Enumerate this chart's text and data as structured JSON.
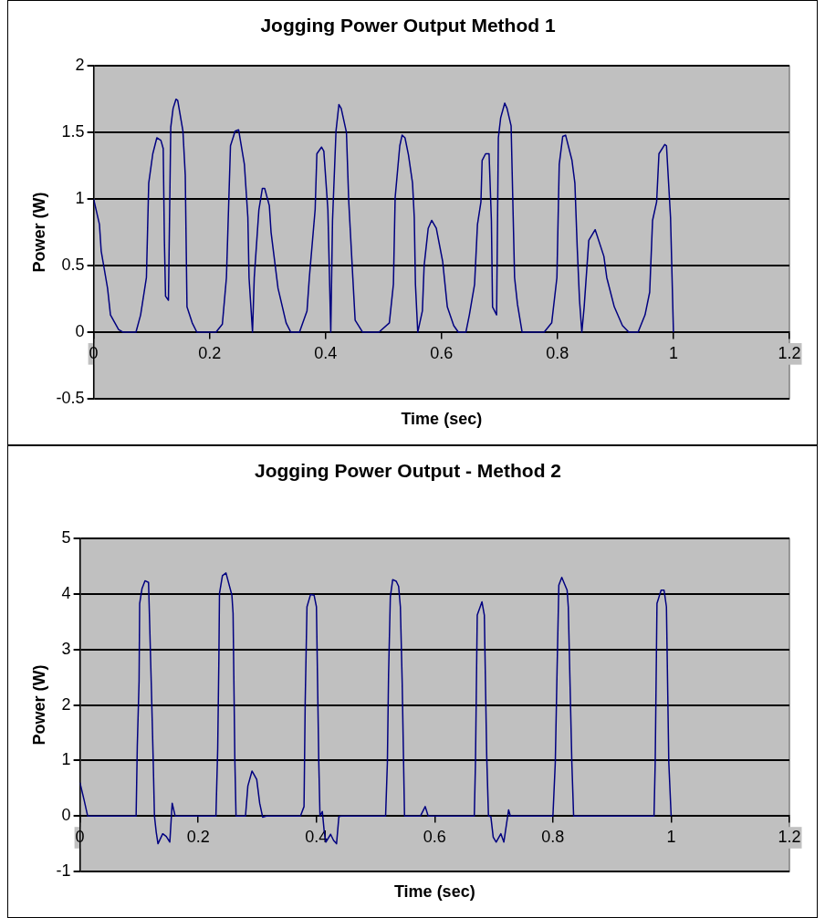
{
  "chart_data": [
    {
      "type": "line",
      "title": "Jogging Power Output Method 1",
      "xlabel": "Time (sec)",
      "ylabel": "Power (W)",
      "xlim": [
        0,
        1.2
      ],
      "xticks": [
        0,
        0.2,
        0.4,
        0.6,
        0.8,
        1,
        1.2
      ],
      "ylim": [
        -0.5,
        2
      ],
      "yticks": [
        -0.5,
        0,
        0.5,
        1,
        1.5,
        2
      ],
      "grid": "y",
      "marker": "none",
      "series": [
        {
          "color": "#000080",
          "x": [
            0,
            0.01,
            0.013,
            0.024,
            0.029,
            0.043,
            0.051,
            0.073,
            0.081,
            0.091,
            0.095,
            0.102,
            0.109,
            0.116,
            0.12,
            0.122,
            0.124,
            0.129,
            0.133,
            0.137,
            0.142,
            0.145,
            0.154,
            0.158,
            0.161,
            0.17,
            0.178,
            0.211,
            0.222,
            0.229,
            0.236,
            0.244,
            0.25,
            0.26,
            0.266,
            0.268,
            0.274,
            0.277,
            0.285,
            0.291,
            0.295,
            0.303,
            0.306,
            0.318,
            0.332,
            0.34,
            0.355,
            0.368,
            0.372,
            0.382,
            0.385,
            0.393,
            0.397,
            0.404,
            0.409,
            0.412,
            0.418,
            0.423,
            0.427,
            0.436,
            0.44,
            0.447,
            0.451,
            0.464,
            0.492,
            0.51,
            0.517,
            0.52,
            0.528,
            0.532,
            0.537,
            0.543,
            0.55,
            0.553,
            0.555,
            0.559,
            0.567,
            0.57,
            0.577,
            0.583,
            0.591,
            0.602,
            0.61,
            0.621,
            0.629,
            0.642,
            0.648,
            0.657,
            0.662,
            0.668,
            0.67,
            0.676,
            0.682,
            0.686,
            0.688,
            0.695,
            0.698,
            0.702,
            0.709,
            0.713,
            0.72,
            0.726,
            0.731,
            0.739,
            0.777,
            0.79,
            0.799,
            0.803,
            0.809,
            0.814,
            0.825,
            0.83,
            0.834,
            0.838,
            0.842,
            0.846,
            0.854,
            0.865,
            0.88,
            0.885,
            0.898,
            0.912,
            0.923,
            0.939,
            0.951,
            0.959,
            0.964,
            0.971,
            0.975,
            0.985,
            0.988,
            0.995,
            1.0
          ],
          "values": [
            1.0,
            0.81,
            0.61,
            0.33,
            0.13,
            0.02,
            0,
            0,
            0.13,
            0.41,
            1.12,
            1.34,
            1.46,
            1.44,
            1.38,
            0.69,
            0.27,
            0.24,
            1.54,
            1.68,
            1.75,
            1.74,
            1.51,
            1.18,
            0.19,
            0.07,
            0,
            0,
            0.06,
            0.41,
            1.4,
            1.51,
            1.52,
            1.26,
            0.86,
            0.41,
            0,
            0.41,
            0.92,
            1.08,
            1.08,
            0.95,
            0.75,
            0.33,
            0.07,
            0,
            0,
            0.16,
            0.41,
            0.92,
            1.34,
            1.39,
            1.36,
            0.92,
            0,
            0.84,
            1.51,
            1.71,
            1.68,
            1.5,
            0.98,
            0.41,
            0.09,
            0,
            0,
            0.07,
            0.36,
            1.01,
            1.4,
            1.48,
            1.46,
            1.33,
            1.12,
            0.86,
            0.36,
            0,
            0.16,
            0.5,
            0.78,
            0.84,
            0.78,
            0.53,
            0.19,
            0.05,
            0,
            0,
            0.13,
            0.36,
            0.81,
            0.98,
            1.29,
            1.34,
            1.34,
            0.84,
            0.19,
            0.13,
            1.46,
            1.61,
            1.72,
            1.68,
            1.55,
            0.41,
            0.21,
            0,
            0,
            0.07,
            0.41,
            1.26,
            1.47,
            1.48,
            1.29,
            1.12,
            0.64,
            0.24,
            0,
            0.19,
            0.69,
            0.77,
            0.57,
            0.41,
            0.19,
            0.05,
            0,
            0,
            0.13,
            0.3,
            0.84,
            0.98,
            1.34,
            1.41,
            1.4,
            0.86,
            0
          ]
        }
      ]
    },
    {
      "type": "line",
      "title": "Jogging Power Output - Method 2",
      "xlabel": "Time (sec)",
      "ylabel": "Power (W)",
      "xlim": [
        0,
        1.2
      ],
      "xticks": [
        0,
        0.2,
        0.4,
        0.6,
        0.8,
        1,
        1.2
      ],
      "ylim": [
        -1,
        5
      ],
      "yticks": [
        -1,
        0,
        1,
        2,
        3,
        4,
        5
      ],
      "grid": "y",
      "marker": "none",
      "series": [
        {
          "color": "#000080",
          "x": [
            0,
            0.007,
            0.013,
            0.095,
            0.097,
            0.1,
            0.101,
            0.105,
            0.11,
            0.116,
            0.117,
            0.121,
            0.124,
            0.126,
            0.129,
            0.132,
            0.14,
            0.146,
            0.152,
            0.156,
            0.161,
            0.23,
            0.233,
            0.235,
            0.236,
            0.241,
            0.247,
            0.257,
            0.259,
            0.262,
            0.264,
            0.28,
            0.284,
            0.291,
            0.299,
            0.304,
            0.309,
            0.315,
            0.373,
            0.379,
            0.381,
            0.384,
            0.39,
            0.396,
            0.4,
            0.404,
            0.406,
            0.41,
            0.413,
            0.416,
            0.424,
            0.429,
            0.434,
            0.438,
            0.442,
            0.517,
            0.52,
            0.522,
            0.525,
            0.529,
            0.535,
            0.539,
            0.542,
            0.545,
            0.549,
            0.576,
            0.584,
            0.589,
            0.667,
            0.669,
            0.672,
            0.68,
            0.684,
            0.688,
            0.691,
            0.695,
            0.699,
            0.704,
            0.712,
            0.717,
            0.725,
            0.728,
            0.8,
            0.804,
            0.807,
            0.81,
            0.815,
            0.824,
            0.826,
            0.832,
            0.835,
            0.971,
            0.973,
            0.976,
            0.983,
            0.988,
            0.992,
            0.996,
            1.0
          ],
          "values": [
            0.6,
            0.29,
            0,
            0,
            1.27,
            2.43,
            3.83,
            4.1,
            4.24,
            4.21,
            3.83,
            2.24,
            0.96,
            0,
            -0.29,
            -0.5,
            -0.32,
            -0.37,
            -0.47,
            0.23,
            0,
            0,
            1.21,
            2.85,
            4.01,
            4.33,
            4.38,
            3.98,
            3.65,
            1.02,
            0,
            0,
            0.54,
            0.81,
            0.66,
            0.23,
            -0.02,
            0,
            0,
            0.17,
            2.06,
            3.77,
            3.99,
            3.98,
            3.77,
            0.96,
            0,
            0.08,
            -0.26,
            -0.47,
            -0.33,
            -0.44,
            -0.5,
            -0.01,
            0,
            0,
            0.96,
            2.55,
            3.95,
            4.26,
            4.23,
            4.14,
            3.77,
            2.43,
            0,
            0,
            0.17,
            0,
            0,
            0.96,
            3.62,
            3.86,
            3.62,
            1.09,
            0,
            -0.01,
            -0.38,
            -0.47,
            -0.32,
            -0.47,
            0.11,
            0,
            0,
            0.96,
            2.61,
            4.16,
            4.3,
            4.07,
            3.77,
            0.96,
            0,
            0,
            0.96,
            3.83,
            4.07,
            4.07,
            3.77,
            0.96,
            0
          ]
        }
      ]
    }
  ]
}
